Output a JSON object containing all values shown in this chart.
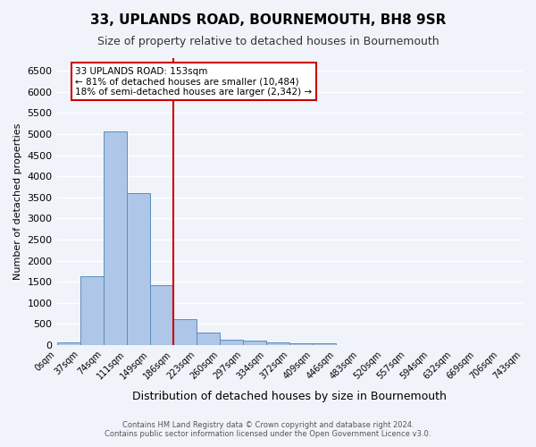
{
  "title": "33, UPLANDS ROAD, BOURNEMOUTH, BH8 9SR",
  "subtitle": "Size of property relative to detached houses in Bournemouth",
  "xlabel": "Distribution of detached houses by size in Bournemouth",
  "ylabel": "Number of detached properties",
  "bar_values": [
    60,
    1640,
    5060,
    3600,
    1410,
    620,
    290,
    130,
    100,
    70,
    50,
    50,
    0,
    0,
    0,
    0,
    0,
    0,
    0,
    0
  ],
  "bin_labels": [
    "0sqm",
    "37sqm",
    "74sqm",
    "111sqm",
    "149sqm",
    "186sqm",
    "223sqm",
    "260sqm",
    "297sqm",
    "334sqm",
    "372sqm",
    "409sqm",
    "446sqm",
    "483sqm",
    "520sqm",
    "557sqm",
    "594sqm",
    "632sqm",
    "669sqm",
    "706sqm",
    "743sqm"
  ],
  "bar_color": "#aec6e8",
  "bar_edge_color": "#5b8db8",
  "vline_x": 4,
  "vline_color": "#cc0000",
  "annotation_title": "33 UPLANDS ROAD: 153sqm",
  "annotation_line1": "← 81% of detached houses are smaller (10,484)",
  "annotation_line2": "18% of semi-detached houses are larger (2,342) →",
  "annotation_box_color": "#cc0000",
  "ylim": [
    0,
    6800
  ],
  "yticks": [
    0,
    500,
    1000,
    1500,
    2000,
    2500,
    3000,
    3500,
    4000,
    4500,
    5000,
    5500,
    6000,
    6500
  ],
  "footer_line1": "Contains HM Land Registry data © Crown copyright and database right 2024.",
  "footer_line2": "Contains public sector information licensed under the Open Government Licence v3.0.",
  "bg_color": "#f0f4fa",
  "grid_color": "#ffffff"
}
